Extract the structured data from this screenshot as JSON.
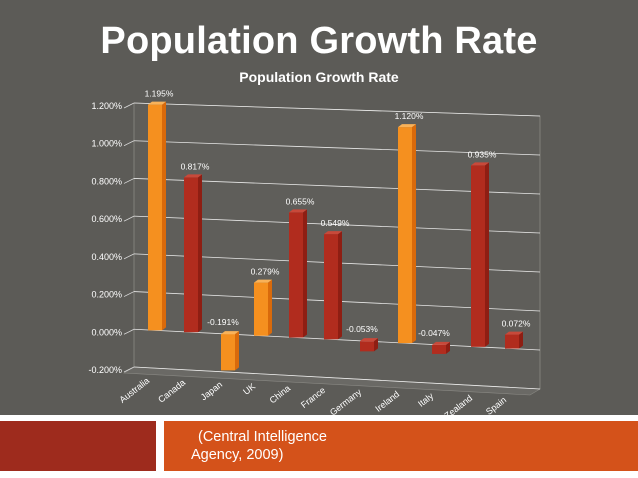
{
  "slide": {
    "title": "Population Growth Rate",
    "source_line1": "(Central Intelligence",
    "source_line2": "Agency, 2009)"
  },
  "colors": {
    "background": "#5c5b57",
    "orange": "#f07e14",
    "red": "#a5281b",
    "footer_dark": "#9e2b1d",
    "footer_orange": "#d4521a"
  },
  "chart_data": {
    "type": "bar",
    "title": "Population Growth Rate",
    "xlabel": "",
    "ylabel": "",
    "categories": [
      "Australia",
      "Canada",
      "Japan",
      "UK",
      "China",
      "France",
      "Germany",
      "Ireland",
      "Italy",
      "New Zealand",
      "Spain"
    ],
    "values": [
      1.195,
      0.817,
      -0.191,
      0.279,
      0.655,
      0.549,
      -0.053,
      1.12,
      -0.047,
      0.935,
      0.072
    ],
    "data_labels": [
      "1.195%",
      "0.817%",
      "-0.191%",
      "0.279%",
      "0.655%",
      "0.549%",
      "-0.053%",
      "1.120%",
      "-0.047%",
      "0.935%",
      "0.072%"
    ],
    "bar_colors": [
      "orange",
      "red",
      "orange",
      "orange",
      "red",
      "red",
      "red",
      "orange",
      "red",
      "red",
      "red"
    ],
    "ylim": [
      -0.2,
      1.2
    ],
    "yticks": [
      -0.2,
      0.0,
      0.2,
      0.4,
      0.6,
      0.8,
      1.0,
      1.2
    ],
    "ytick_labels": [
      "-0.200%",
      "0.000%",
      "0.200%",
      "0.400%",
      "0.600%",
      "0.800%",
      "1.000%",
      "1.200%"
    ],
    "grid": true,
    "legend": "none",
    "perspective": "3d"
  }
}
